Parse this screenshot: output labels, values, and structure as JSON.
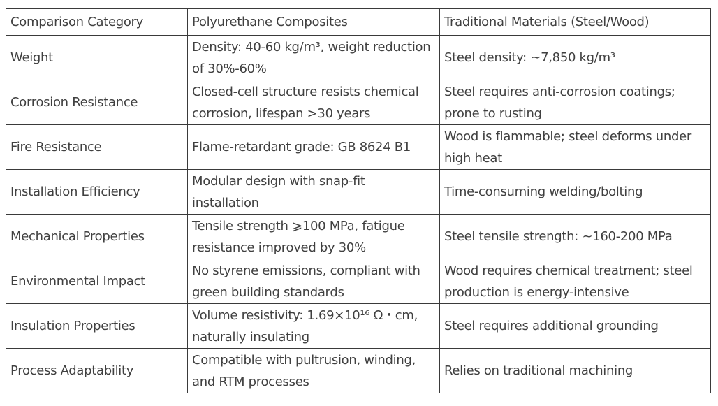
{
  "table": {
    "header": [
      "Comparison Category",
      "Polyurethane Composites",
      "Traditional Materials (Steel/Wood)"
    ],
    "rows": [
      [
        "Weight",
        "Density: 40-60 kg/m³, weight reduction of 30%-60%",
        "Steel density: ~7,850 kg/m³"
      ],
      [
        "Corrosion Resistance",
        "Closed-cell structure resists chemical corrosion, lifespan >30 years",
        "Steel requires anti-corrosion coatings; prone to rusting"
      ],
      [
        "Fire Resistance",
        "Flame-retardant grade: GB 8624 B1",
        "Wood is flammable; steel deforms under high heat"
      ],
      [
        "Installation Efficiency",
        "Modular design with snap-fit installation",
        "Time-consuming welding/bolting"
      ],
      [
        "Mechanical Properties",
        "Tensile strength ⩾100 MPa, fatigue resistance improved by 30%",
        "Steel tensile strength: ~160-200 MPa"
      ],
      [
        "Environmental Impact",
        "No styrene emissions, compliant with green building standards",
        "Wood requires chemical treatment; steel production is energy-intensive"
      ],
      [
        "Insulation Properties",
        "Volume resistivity: 1.69×10¹⁶ Ω・cm, naturally insulating",
        "Steel requires additional grounding"
      ],
      [
        "Process Adaptability",
        "Compatible with pultrusion, winding, and RTM processes",
        "Relies on traditional machining"
      ]
    ]
  }
}
